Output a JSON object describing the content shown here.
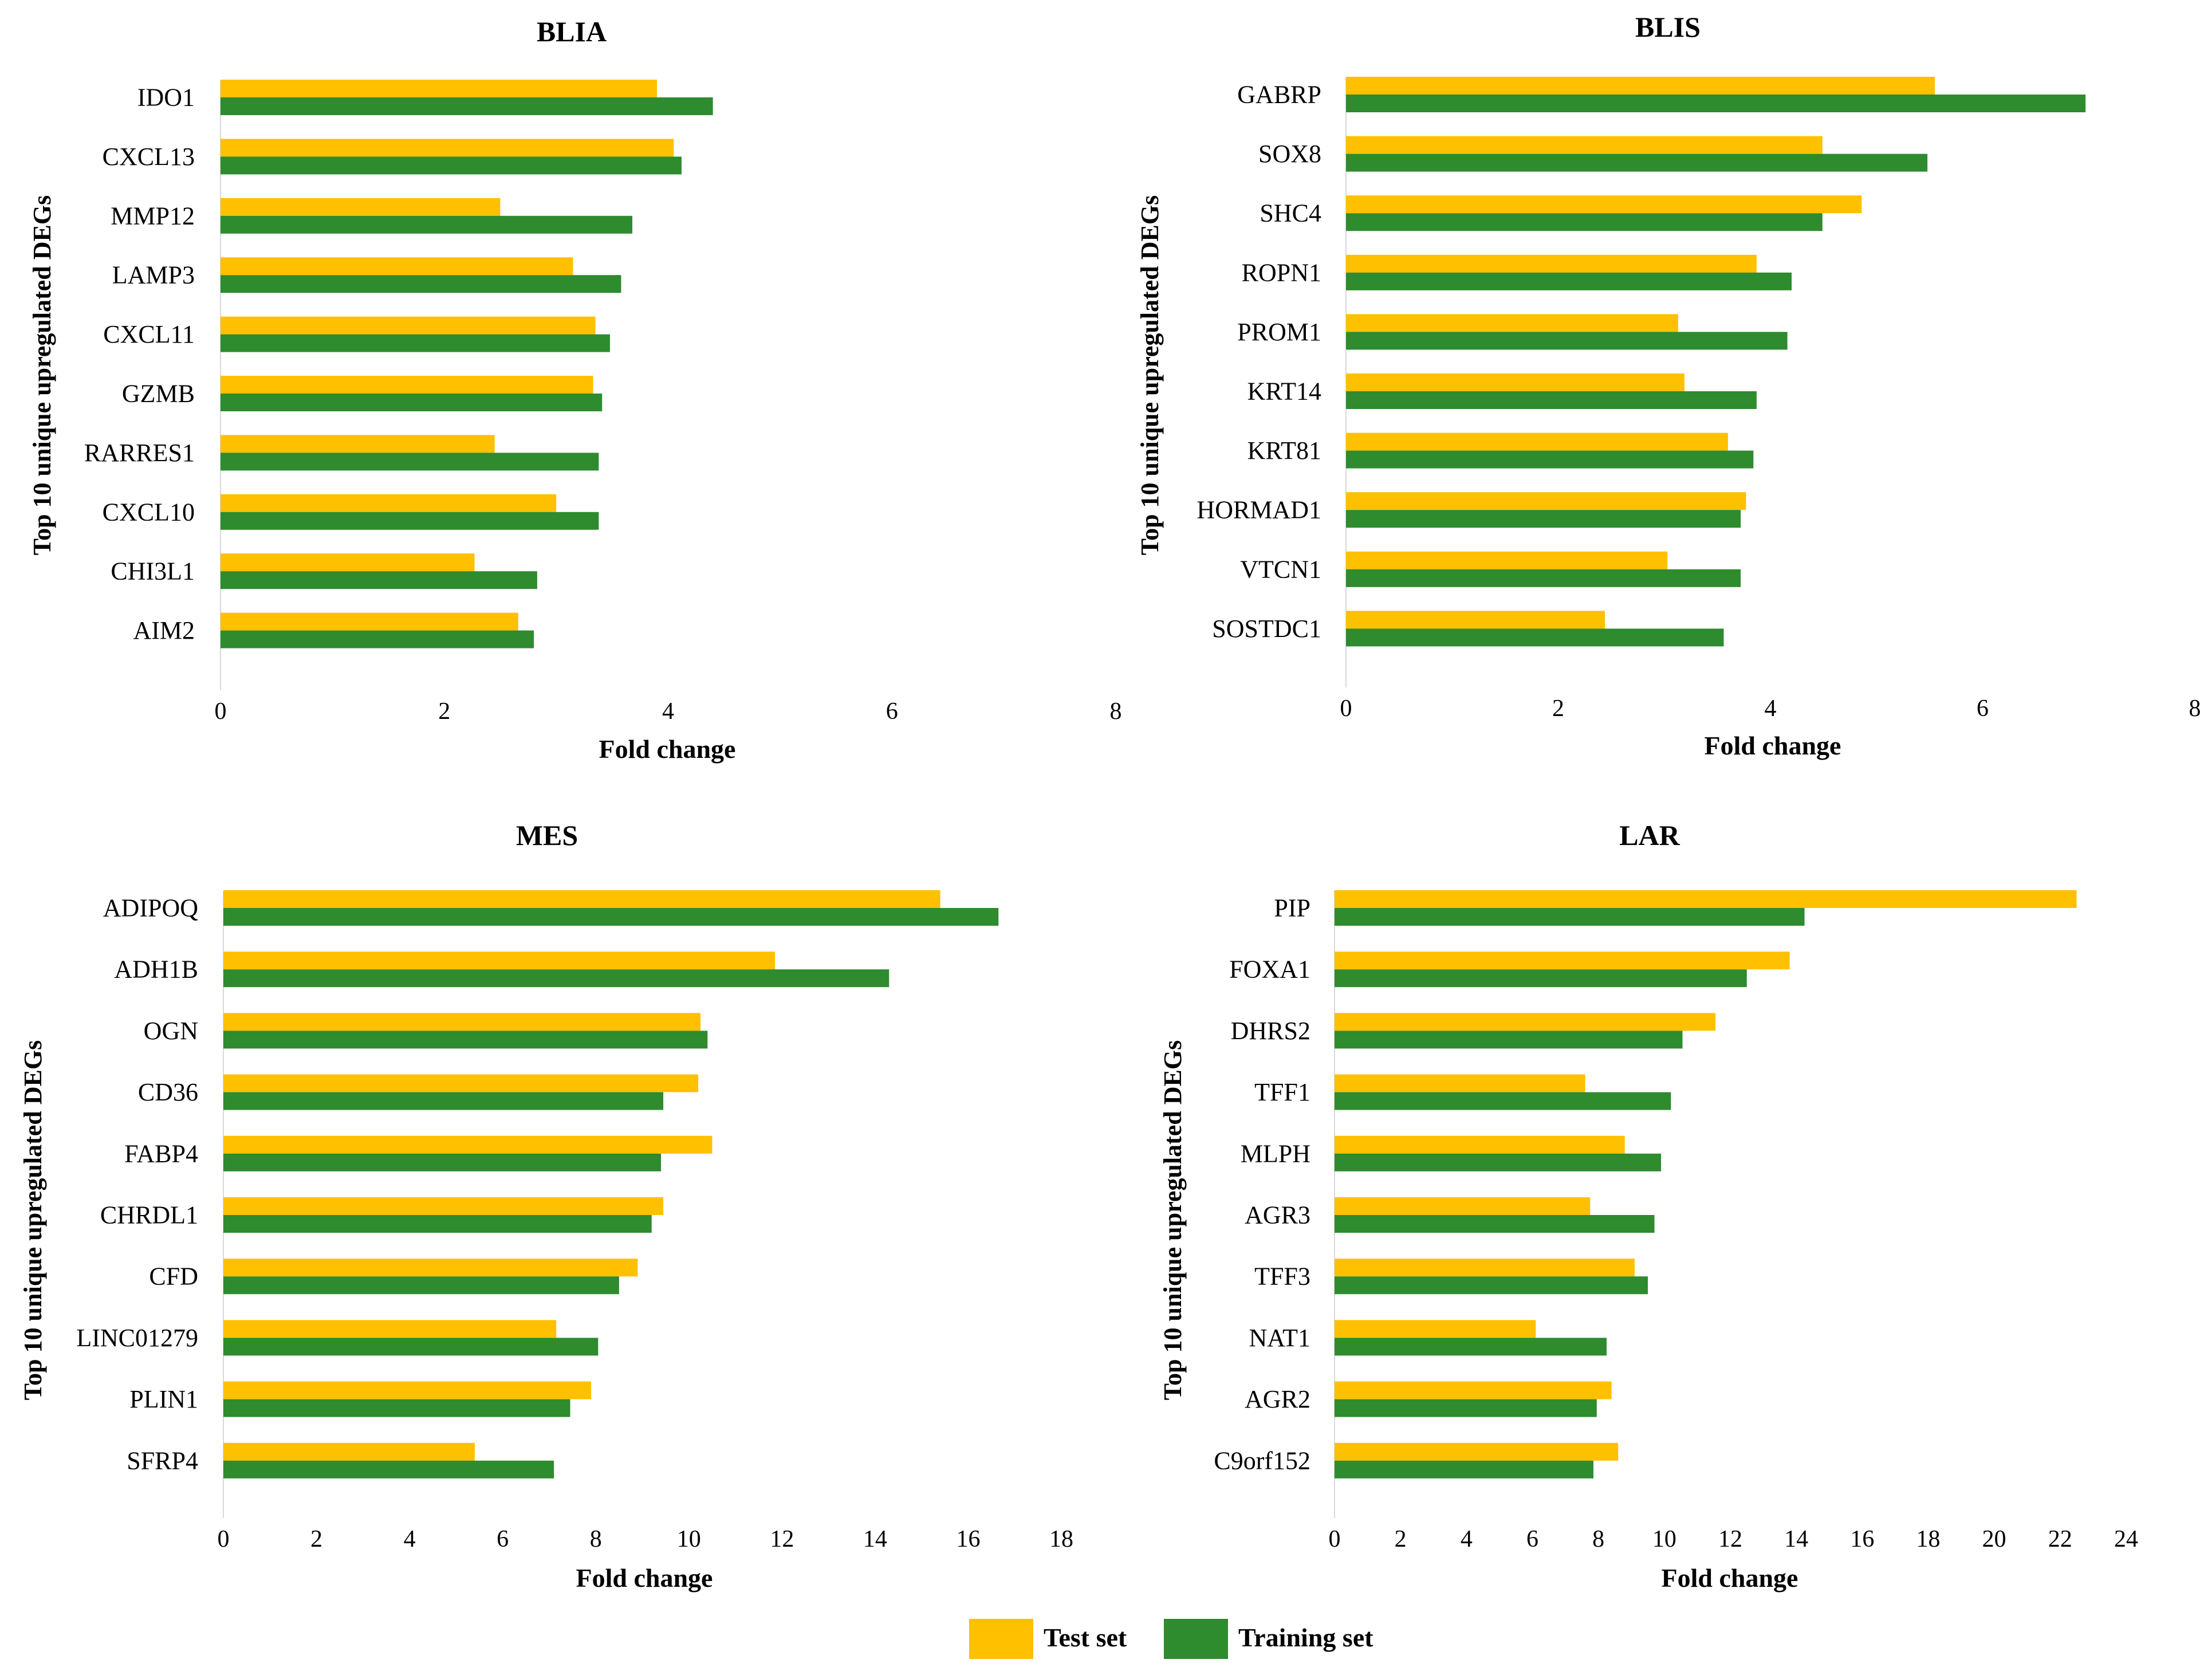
{
  "colors": {
    "test": "#FFC000",
    "training": "#2E8B2E",
    "text": "#000000"
  },
  "legend": {
    "test_label": "Test set",
    "training_label": "Training set"
  },
  "chart_data": [
    {
      "type": "bar",
      "orientation": "horizontal",
      "title": "BLIA",
      "xlabel": "Fold change",
      "ylabel": "Top 10 unique upregulated DEGs",
      "xlim": [
        0,
        8
      ],
      "xticks": [
        0,
        2,
        4,
        6,
        8
      ],
      "grid": false,
      "categories": [
        "IDO1",
        "CXCL13",
        "MMP12",
        "LAMP3",
        "CXCL11",
        "GZMB",
        "RARRES1",
        "CXCL10",
        "CHI3L1",
        "AIM2"
      ],
      "series": [
        {
          "name": "Test set",
          "values": [
            3.9,
            4.05,
            2.5,
            3.15,
            3.35,
            3.33,
            2.45,
            3.0,
            2.27,
            2.66
          ]
        },
        {
          "name": "Training set",
          "values": [
            4.4,
            4.12,
            3.68,
            3.58,
            3.48,
            3.41,
            3.38,
            3.38,
            2.83,
            2.8
          ]
        }
      ]
    },
    {
      "type": "bar",
      "orientation": "horizontal",
      "title": "BLIS",
      "xlabel": "Fold change",
      "ylabel": "Top 10 unique upregulated DEGs",
      "xlim": [
        0,
        8
      ],
      "xticks": [
        0,
        2,
        4,
        6,
        8
      ],
      "grid": false,
      "categories": [
        "GABRP",
        "SOX8",
        "SHC4",
        "ROPN1",
        "PROM1",
        "KRT14",
        "KRT81",
        "HORMAD1",
        "VTCN1",
        "SOSTDC1"
      ],
      "series": [
        {
          "name": "Test set",
          "values": [
            5.55,
            4.49,
            4.86,
            3.87,
            3.13,
            3.19,
            3.6,
            3.77,
            3.03,
            2.44
          ]
        },
        {
          "name": "Training set",
          "values": [
            6.97,
            5.48,
            4.49,
            4.2,
            4.16,
            3.87,
            3.84,
            3.72,
            3.72,
            3.56
          ]
        }
      ]
    },
    {
      "type": "bar",
      "orientation": "horizontal",
      "title": "MES",
      "xlabel": "Fold change",
      "ylabel": "Top 10 unique upregulated DEGs",
      "xlim": [
        0,
        18
      ],
      "xticks": [
        0,
        2,
        4,
        6,
        8,
        10,
        12,
        14,
        16,
        18
      ],
      "grid": false,
      "categories": [
        "ADIPOQ",
        "ADH1B",
        "OGN",
        "CD36",
        "FABP4",
        "CHRDL1",
        "CFD",
        "LINC01279",
        "PLIN1",
        "SFRP4"
      ],
      "series": [
        {
          "name": "Test set",
          "values": [
            15.4,
            11.85,
            10.25,
            10.2,
            10.5,
            9.45,
            8.9,
            7.15,
            7.9,
            5.4
          ]
        },
        {
          "name": "Training set",
          "values": [
            16.65,
            14.3,
            10.4,
            9.45,
            9.4,
            9.2,
            8.5,
            8.05,
            7.45,
            7.1
          ]
        }
      ]
    },
    {
      "type": "bar",
      "orientation": "horizontal",
      "title": "LAR",
      "xlabel": "Fold change",
      "ylabel": "Top 10 unique upregulated DEGs",
      "xlim": [
        0,
        24
      ],
      "xticks": [
        0,
        2,
        4,
        6,
        8,
        10,
        12,
        14,
        16,
        18,
        20,
        22,
        24
      ],
      "grid": false,
      "categories": [
        "PIP",
        "FOXA1",
        "DHRS2",
        "TFF1",
        "MLPH",
        "AGR3",
        "TFF3",
        "NAT1",
        "AGR2",
        "C9orf152"
      ],
      "series": [
        {
          "name": "Test set",
          "values": [
            22.5,
            13.8,
            11.55,
            7.6,
            8.8,
            7.75,
            9.1,
            6.1,
            8.4,
            8.6
          ]
        },
        {
          "name": "Training set",
          "values": [
            14.25,
            12.5,
            10.55,
            10.2,
            9.9,
            9.7,
            9.5,
            8.25,
            7.95,
            7.85
          ]
        }
      ]
    }
  ]
}
